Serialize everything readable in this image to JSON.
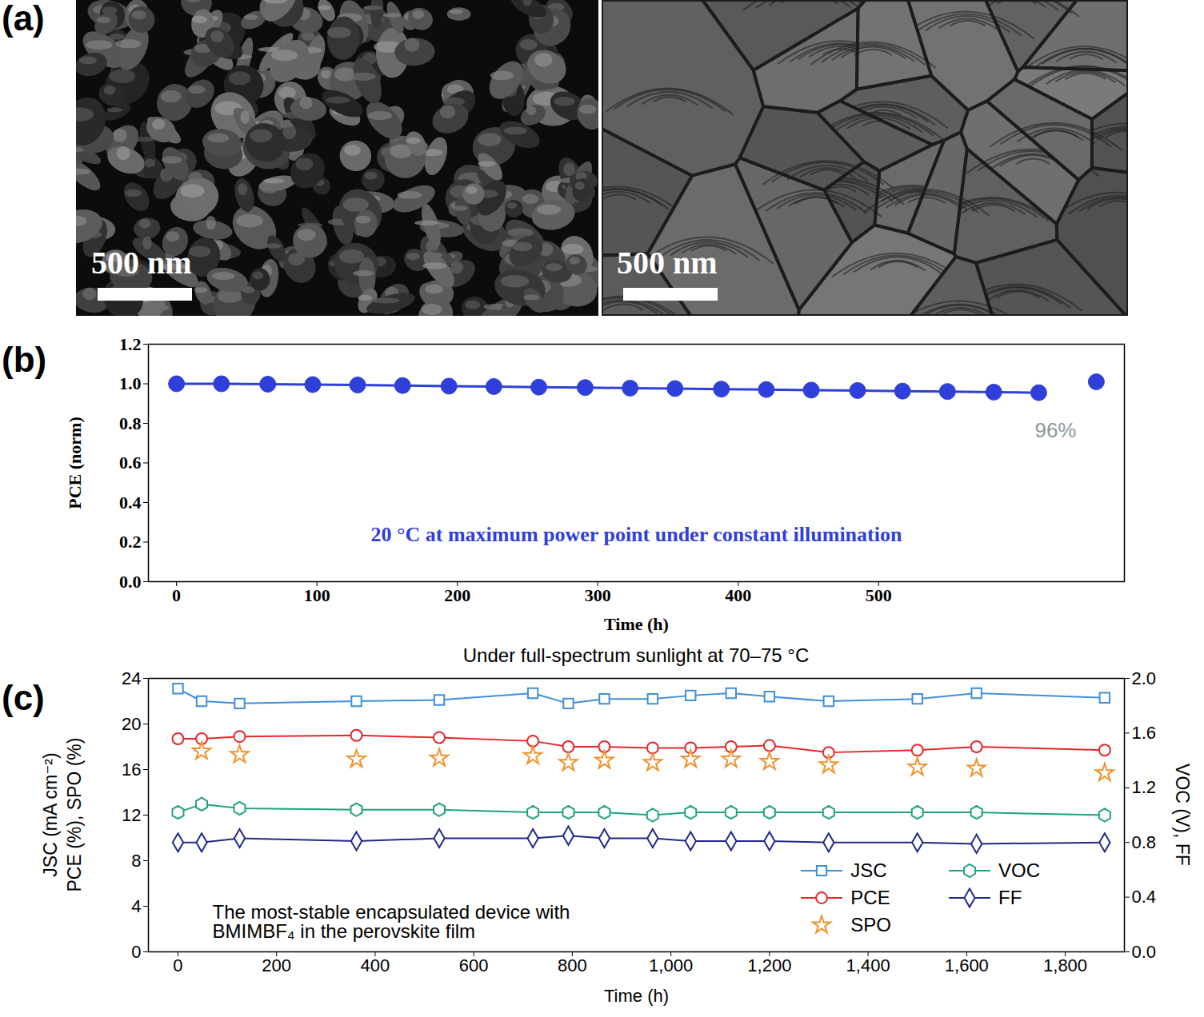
{
  "panel_a": {
    "label": "(a)",
    "images": [
      {
        "scale_bar": "500 nm"
      },
      {
        "scale_bar": "500 nm"
      }
    ]
  },
  "chart_data": [
    {
      "panel_label": "(b)",
      "type": "line",
      "xlabel": "Time (h)",
      "ylabel": "PCE (norm)",
      "x": [
        0,
        32,
        65,
        97,
        129,
        161,
        194,
        226,
        258,
        291,
        323,
        355,
        388,
        420,
        452,
        485,
        517,
        549,
        582,
        614,
        655
      ],
      "series": [
        {
          "color": "#2f3fd9",
          "marker": "circle",
          "line_style": "solid",
          "values": [
            1.0,
            1.0,
            0.998,
            0.996,
            0.994,
            0.991,
            0.988,
            0.986,
            0.983,
            0.981,
            0.978,
            0.976,
            0.973,
            0.971,
            0.968,
            0.966,
            0.963,
            0.961,
            0.958,
            0.955,
            null
          ]
        },
        {
          "color": "#2f3fd9",
          "marker": "circle",
          "line_style": "none",
          "values": [
            null,
            null,
            null,
            null,
            null,
            null,
            null,
            null,
            null,
            null,
            null,
            null,
            null,
            null,
            null,
            null,
            null,
            null,
            null,
            null,
            1.01
          ]
        }
      ],
      "xlim": [
        -20,
        675
      ],
      "xticks": [
        0,
        100,
        200,
        300,
        400,
        500
      ],
      "ylim": [
        0,
        1.2
      ],
      "yticks": [
        {
          "value": 0,
          "label": "0.0"
        },
        0.2,
        0.4,
        0.6,
        0.8,
        {
          "value": 1,
          "label": "1.0"
        },
        1.2
      ],
      "annotations": [
        "96%",
        "20 °C at maximum power point under constant illumination"
      ]
    },
    {
      "panel_label": "(c)",
      "type": "line",
      "title": "Under full-spectrum sunlight at 70–75 °C",
      "xlabel": "Time (h)",
      "ylabel": "JSC (mA cm⁻²)\nPCE (%), SPO (%)",
      "y2label": "VOC (V), FF",
      "x": [
        0,
        48,
        125,
        362,
        530,
        720,
        792,
        865,
        963,
        1040,
        1122,
        1200,
        1320,
        1500,
        1620,
        1880
      ],
      "series": [
        {
          "name": "JSC",
          "color": "#3f8fdc",
          "marker": "square",
          "line_style": "solid",
          "values": [
            23.1,
            22.0,
            21.8,
            22.0,
            22.1,
            22.7,
            21.8,
            22.2,
            22.2,
            22.5,
            22.7,
            22.4,
            22.0,
            22.2,
            22.7,
            22.3
          ]
        },
        {
          "name": "PCE",
          "color": "#e8262a",
          "marker": "circle",
          "line_style": "solid",
          "values": [
            18.7,
            18.7,
            18.9,
            19.0,
            18.8,
            18.5,
            18.0,
            18.0,
            17.9,
            17.9,
            18.0,
            18.1,
            17.5,
            17.7,
            18.0,
            17.7
          ]
        },
        {
          "name": "SPO",
          "color": "#f0922b",
          "marker": "star",
          "line_style": "none",
          "values": [
            null,
            17.6,
            17.3,
            16.9,
            17.0,
            17.2,
            16.6,
            16.8,
            16.6,
            16.9,
            16.9,
            16.7,
            16.4,
            16.2,
            16.1,
            15.7
          ]
        },
        {
          "name": "VOC",
          "color": "#1fa37f",
          "marker": "hexagon",
          "line_style": "solid",
          "axis": "y2",
          "values": [
            1.02,
            1.08,
            1.05,
            1.04,
            1.04,
            1.02,
            1.02,
            1.02,
            1.0,
            1.02,
            1.02,
            1.02,
            1.02,
            1.02,
            1.02,
            1.0
          ]
        },
        {
          "name": "FF",
          "color": "#1f2a8a",
          "marker": "diamond",
          "line_style": "solid",
          "axis": "y2",
          "values": [
            0.8,
            0.8,
            0.83,
            0.81,
            0.83,
            0.83,
            0.85,
            0.83,
            0.83,
            0.81,
            0.81,
            0.81,
            0.8,
            0.8,
            0.79,
            0.8
          ]
        }
      ],
      "xlim": [
        -60,
        1920
      ],
      "xticks": [
        0,
        200,
        400,
        600,
        800,
        {
          "value": 1000,
          "label": "1,000"
        },
        {
          "value": 1200,
          "label": "1,200"
        },
        {
          "value": 1400,
          "label": "1,400"
        },
        {
          "value": 1600,
          "label": "1,600"
        },
        {
          "value": 1800,
          "label": "1,800"
        }
      ],
      "ylim": [
        0,
        24
      ],
      "yticks": [
        0,
        4,
        8,
        12,
        16,
        20,
        24
      ],
      "y2lim": [
        0,
        2
      ],
      "y2ticks": [
        {
          "value": 0,
          "label": "0.0"
        },
        0.4,
        0.8,
        1.2,
        1.6,
        {
          "value": 2,
          "label": "2.0"
        }
      ],
      "legend": "lower right",
      "annotations": [
        "The most-stable encapsulated device with\nBMIMBF₄ in the perovskite film"
      ]
    }
  ]
}
